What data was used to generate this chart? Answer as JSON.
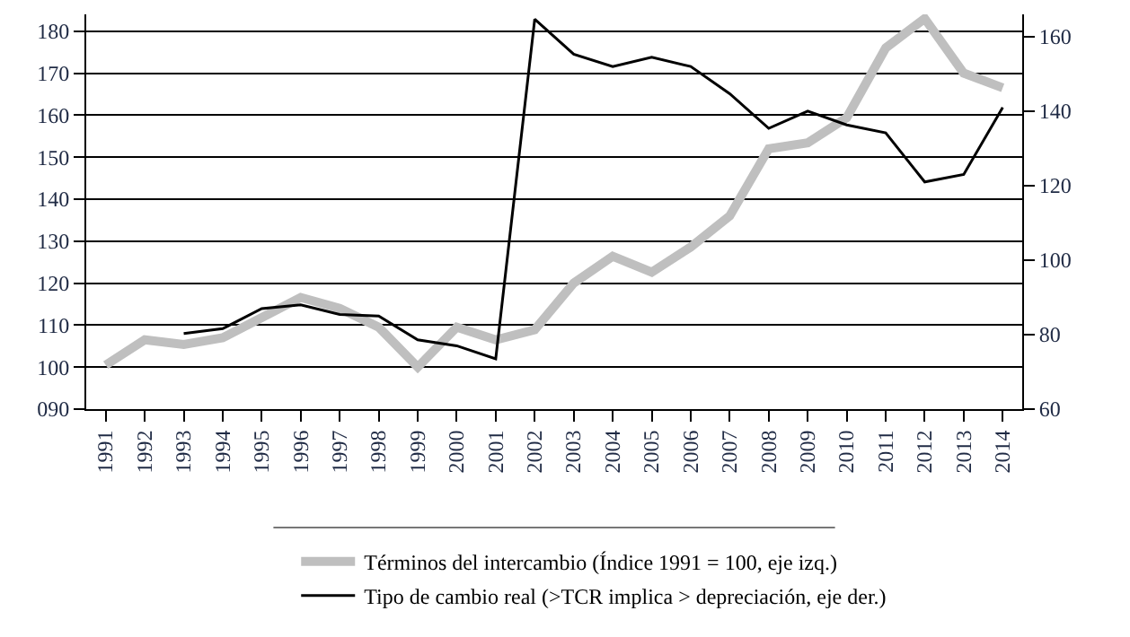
{
  "chart_data": {
    "type": "line",
    "categories": [
      "1991",
      "1992",
      "1993",
      "1994",
      "1995",
      "1996",
      "1997",
      "1998",
      "1999",
      "2000",
      "2001",
      "2002",
      "2003",
      "2004",
      "2005",
      "2006",
      "2007",
      "2008",
      "2009",
      "2010",
      "2011",
      "2012",
      "2013",
      "2014"
    ],
    "series": [
      {
        "name": "Términos del intercambio (Índice 1991 = 100, eje izq.)",
        "color": "#bfbfbf",
        "values": [
          100.5,
          106.5,
          105.4,
          107,
          111.8,
          116.6,
          114,
          109.5,
          100,
          109.5,
          106.5,
          108.9,
          120,
          126.4,
          122.6,
          128.6,
          136,
          152,
          153.4,
          159.4,
          176,
          183,
          170,
          166.5
        ]
      },
      {
        "name": "Tipo de cambio real (>TCR implica > depreciación, eje der.)",
        "color": "#000000",
        "axis": "y2",
        "values": [
          null,
          null,
          80.3,
          81.6,
          87,
          88,
          85.4,
          85,
          78.6,
          77,
          73.5,
          164.7,
          155.3,
          152,
          154.5,
          152,
          144.7,
          135.4,
          140,
          136.3,
          134.2,
          121,
          123,
          141
        ]
      }
    ],
    "ylim": [
      90,
      184
    ],
    "yticks": [
      {
        "value": 90,
        "label": "090"
      },
      100,
      110,
      120,
      130,
      140,
      150,
      160,
      170,
      180
    ],
    "y2lim": [
      60,
      166
    ],
    "y2ticks": [
      60,
      80,
      100,
      120,
      140,
      160
    ],
    "grid": "y",
    "legend": "bottom",
    "marker": "none",
    "line_style": "solid"
  }
}
